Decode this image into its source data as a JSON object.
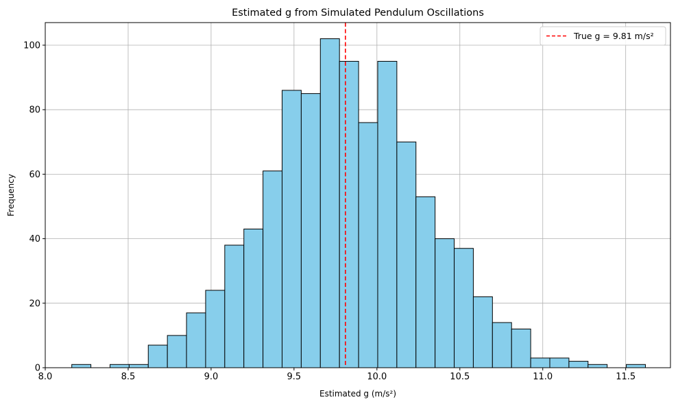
{
  "chart_data": {
    "type": "bar",
    "title": "Estimated g from Simulated Pendulum Oscillations",
    "xlabel": "Estimated g (m/s²)",
    "ylabel": "Frequency",
    "xlim": [
      8.0,
      11.77
    ],
    "ylim": [
      0,
      107
    ],
    "xticks": [
      8.0,
      8.5,
      9.0,
      9.5,
      10.0,
      10.5,
      11.0,
      11.5
    ],
    "xtick_labels": [
      "8.0",
      "8.5",
      "9.0",
      "9.5",
      "10.0",
      "10.5",
      "11.0",
      "11.5"
    ],
    "yticks": [
      0,
      20,
      40,
      60,
      80,
      100
    ],
    "ytick_labels": [
      "0",
      "20",
      "40",
      "60",
      "80",
      "100"
    ],
    "bin_start": 8.16,
    "bin_width": 0.1153,
    "values": [
      1,
      0,
      1,
      1,
      7,
      10,
      17,
      24,
      38,
      43,
      61,
      86,
      85,
      102,
      95,
      76,
      95,
      70,
      53,
      40,
      37,
      22,
      14,
      12,
      3,
      3,
      2,
      1,
      0,
      1
    ],
    "bar_color": "#87ceeb",
    "edge_color": "#000000",
    "reference_line": {
      "x": 9.81,
      "color": "#ff0000",
      "style": "dashed"
    },
    "legend": {
      "label": "True g = 9.81 m/s²",
      "placement": "top-right"
    },
    "grid": true
  }
}
